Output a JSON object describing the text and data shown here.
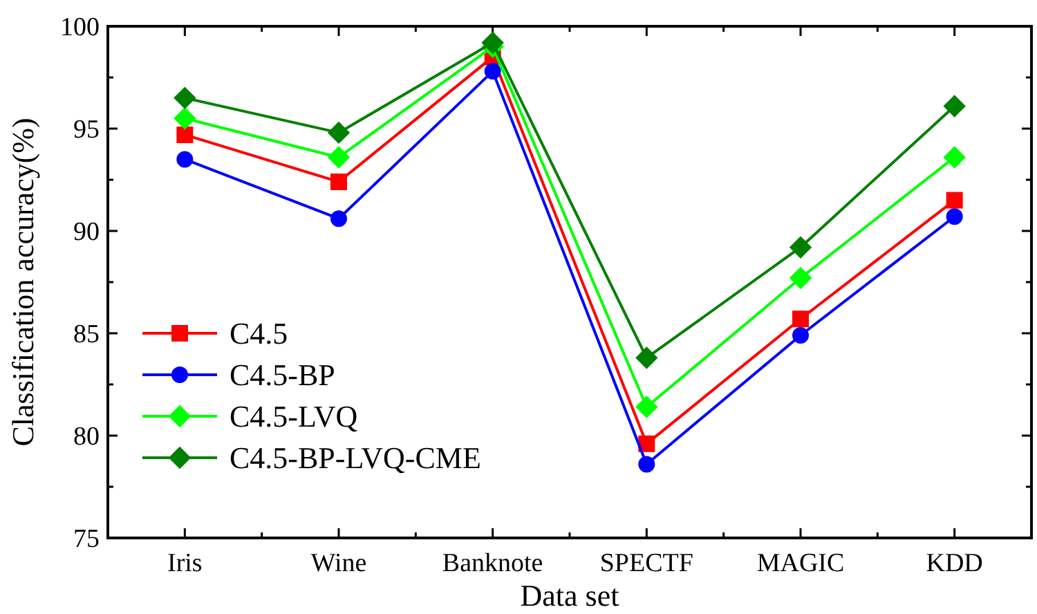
{
  "chart_data": {
    "type": "line",
    "xlabel": "Data set",
    "ylabel": "Classification accuracy(%)",
    "categories": [
      "Iris",
      "Wine",
      "Banknote",
      "SPECTF",
      "MAGIC",
      "KDD"
    ],
    "ylim": [
      75,
      100
    ],
    "yticks": [
      75,
      80,
      85,
      90,
      95,
      100
    ],
    "grid": false,
    "legend": "left",
    "line_style": "solid",
    "series": [
      {
        "name": "C4.5",
        "color": "#ff0000",
        "marker": "square",
        "values": [
          94.7,
          92.4,
          98.5,
          79.6,
          85.7,
          91.5
        ]
      },
      {
        "name": "C4.5-BP",
        "color": "#0000ff",
        "marker": "circle",
        "values": [
          93.5,
          90.6,
          97.8,
          78.6,
          84.9,
          90.7
        ]
      },
      {
        "name": "C4.5-LVQ",
        "color": "#00ff00",
        "marker": "diamond",
        "values": [
          95.5,
          93.6,
          99.0,
          81.4,
          87.7,
          93.6
        ]
      },
      {
        "name": "C4.5-BP-LVQ-CME",
        "color": "#008000",
        "marker": "diamond",
        "values": [
          96.5,
          94.8,
          99.2,
          83.8,
          89.2,
          96.1
        ]
      }
    ]
  }
}
